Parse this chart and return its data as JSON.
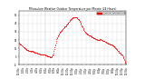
{
  "background_color": "#ffffff",
  "plot_bg_color": "#ffffff",
  "dot_color": "#ff0000",
  "legend_color": "#ff0000",
  "grid_color": "#bbbbbb",
  "text_color": "#000000",
  "xlim": [
    0,
    1440
  ],
  "ylim": [
    -5,
    60
  ],
  "yticks": [
    -5,
    5,
    15,
    25,
    35,
    45,
    55
  ],
  "ytick_labels": [
    "-5",
    "5",
    "15",
    "25",
    "35",
    "45",
    "55"
  ],
  "xtick_positions": [
    0,
    60,
    120,
    180,
    240,
    300,
    360,
    420,
    480,
    540,
    600,
    660,
    720,
    780,
    840,
    900,
    960,
    1020,
    1080,
    1140,
    1200,
    1260,
    1320,
    1380,
    1440
  ],
  "xtick_labels": [
    "12:00a",
    "1:00a",
    "2:00a",
    "3:00a",
    "4:00a",
    "5:00a",
    "6:00a",
    "7:00a",
    "8:00a",
    "9:00a",
    "10:00a",
    "11:00a",
    "12:00p",
    "1:00p",
    "2:00p",
    "3:00p",
    "4:00p",
    "5:00p",
    "6:00p",
    "7:00p",
    "8:00p",
    "9:00p",
    "10:00p",
    "11:00p",
    "12:00a"
  ],
  "temperature_data": [
    [
      0,
      22
    ],
    [
      5,
      21
    ],
    [
      10,
      21
    ],
    [
      15,
      20
    ],
    [
      20,
      20
    ],
    [
      25,
      19
    ],
    [
      30,
      19
    ],
    [
      35,
      18
    ],
    [
      40,
      18
    ],
    [
      45,
      17
    ],
    [
      50,
      17
    ],
    [
      55,
      17
    ],
    [
      60,
      16
    ],
    [
      65,
      16
    ],
    [
      70,
      16
    ],
    [
      75,
      15
    ],
    [
      80,
      15
    ],
    [
      85,
      15
    ],
    [
      90,
      14
    ],
    [
      95,
      14
    ],
    [
      100,
      14
    ],
    [
      105,
      13
    ],
    [
      110,
      13
    ],
    [
      115,
      13
    ],
    [
      120,
      13
    ],
    [
      125,
      13
    ],
    [
      130,
      12
    ],
    [
      135,
      12
    ],
    [
      140,
      12
    ],
    [
      145,
      12
    ],
    [
      150,
      12
    ],
    [
      155,
      11
    ],
    [
      160,
      12
    ],
    [
      165,
      12
    ],
    [
      170,
      12
    ],
    [
      175,
      12
    ],
    [
      180,
      12
    ],
    [
      185,
      12
    ],
    [
      190,
      11
    ],
    [
      195,
      11
    ],
    [
      200,
      11
    ],
    [
      205,
      11
    ],
    [
      210,
      10
    ],
    [
      215,
      10
    ],
    [
      220,
      10
    ],
    [
      225,
      10
    ],
    [
      230,
      10
    ],
    [
      235,
      10
    ],
    [
      240,
      10
    ],
    [
      245,
      10
    ],
    [
      250,
      9
    ],
    [
      255,
      9
    ],
    [
      260,
      9
    ],
    [
      265,
      9
    ],
    [
      270,
      9
    ],
    [
      275,
      9
    ],
    [
      280,
      9
    ],
    [
      285,
      8
    ],
    [
      290,
      8
    ],
    [
      295,
      8
    ],
    [
      300,
      8
    ],
    [
      305,
      8
    ],
    [
      310,
      8
    ],
    [
      315,
      7
    ],
    [
      320,
      7
    ],
    [
      325,
      7
    ],
    [
      330,
      7
    ],
    [
      335,
      7
    ],
    [
      340,
      7
    ],
    [
      345,
      7
    ],
    [
      350,
      7
    ],
    [
      355,
      6
    ],
    [
      360,
      6
    ],
    [
      365,
      6
    ],
    [
      370,
      6
    ],
    [
      375,
      6
    ],
    [
      380,
      5
    ],
    [
      385,
      5
    ],
    [
      390,
      5
    ],
    [
      395,
      5
    ],
    [
      400,
      5
    ],
    [
      405,
      5
    ],
    [
      410,
      5
    ],
    [
      415,
      4
    ],
    [
      420,
      4
    ],
    [
      425,
      4
    ],
    [
      430,
      4
    ],
    [
      435,
      4
    ],
    [
      440,
      5
    ],
    [
      445,
      5
    ],
    [
      450,
      6
    ],
    [
      455,
      7
    ],
    [
      460,
      8
    ],
    [
      465,
      10
    ],
    [
      470,
      12
    ],
    [
      475,
      14
    ],
    [
      480,
      16
    ],
    [
      485,
      18
    ],
    [
      490,
      20
    ],
    [
      495,
      22
    ],
    [
      500,
      24
    ],
    [
      505,
      26
    ],
    [
      510,
      27
    ],
    [
      515,
      28
    ],
    [
      520,
      29
    ],
    [
      525,
      30
    ],
    [
      530,
      31
    ],
    [
      535,
      32
    ],
    [
      540,
      33
    ],
    [
      545,
      34
    ],
    [
      550,
      35
    ],
    [
      555,
      35
    ],
    [
      560,
      35
    ],
    [
      565,
      36
    ],
    [
      570,
      36
    ],
    [
      575,
      37
    ],
    [
      580,
      37
    ],
    [
      585,
      38
    ],
    [
      590,
      38
    ],
    [
      595,
      39
    ],
    [
      600,
      39
    ],
    [
      605,
      40
    ],
    [
      610,
      40
    ],
    [
      615,
      41
    ],
    [
      620,
      41
    ],
    [
      625,
      42
    ],
    [
      630,
      42
    ],
    [
      635,
      43
    ],
    [
      640,
      44
    ],
    [
      645,
      44
    ],
    [
      650,
      45
    ],
    [
      655,
      45
    ],
    [
      660,
      46
    ],
    [
      665,
      46
    ],
    [
      670,
      47
    ],
    [
      675,
      47
    ],
    [
      680,
      48
    ],
    [
      685,
      49
    ],
    [
      690,
      49
    ],
    [
      695,
      50
    ],
    [
      700,
      50
    ],
    [
      705,
      50
    ],
    [
      710,
      51
    ],
    [
      715,
      51
    ],
    [
      720,
      51
    ],
    [
      725,
      52
    ],
    [
      730,
      52
    ],
    [
      735,
      52
    ],
    [
      740,
      52
    ],
    [
      745,
      53
    ],
    [
      750,
      53
    ],
    [
      755,
      53
    ],
    [
      760,
      53
    ],
    [
      765,
      52
    ],
    [
      770,
      52
    ],
    [
      775,
      52
    ],
    [
      780,
      51
    ],
    [
      785,
      51
    ],
    [
      790,
      50
    ],
    [
      795,
      50
    ],
    [
      800,
      50
    ],
    [
      805,
      49
    ],
    [
      810,
      49
    ],
    [
      815,
      48
    ],
    [
      820,
      47
    ],
    [
      825,
      46
    ],
    [
      830,
      45
    ],
    [
      835,
      44
    ],
    [
      840,
      43
    ],
    [
      845,
      42
    ],
    [
      850,
      41
    ],
    [
      855,
      40
    ],
    [
      860,
      39
    ],
    [
      865,
      38
    ],
    [
      870,
      37
    ],
    [
      875,
      36
    ],
    [
      880,
      36
    ],
    [
      885,
      35
    ],
    [
      890,
      35
    ],
    [
      895,
      34
    ],
    [
      900,
      34
    ],
    [
      905,
      33
    ],
    [
      910,
      33
    ],
    [
      915,
      33
    ],
    [
      920,
      32
    ],
    [
      925,
      32
    ],
    [
      930,
      32
    ],
    [
      935,
      31
    ],
    [
      940,
      31
    ],
    [
      945,
      30
    ],
    [
      950,
      30
    ],
    [
      955,
      30
    ],
    [
      960,
      30
    ],
    [
      965,
      29
    ],
    [
      970,
      29
    ],
    [
      975,
      29
    ],
    [
      980,
      28
    ],
    [
      985,
      28
    ],
    [
      990,
      28
    ],
    [
      995,
      28
    ],
    [
      1000,
      27
    ],
    [
      1005,
      27
    ],
    [
      1010,
      27
    ],
    [
      1015,
      27
    ],
    [
      1020,
      27
    ],
    [
      1025,
      26
    ],
    [
      1030,
      26
    ],
    [
      1035,
      26
    ],
    [
      1040,
      26
    ],
    [
      1045,
      26
    ],
    [
      1050,
      25
    ],
    [
      1055,
      25
    ],
    [
      1060,
      25
    ],
    [
      1065,
      25
    ],
    [
      1070,
      25
    ],
    [
      1075,
      25
    ],
    [
      1080,
      25
    ],
    [
      1085,
      25
    ],
    [
      1090,
      26
    ],
    [
      1095,
      26
    ],
    [
      1100,
      26
    ],
    [
      1105,
      25
    ],
    [
      1110,
      25
    ],
    [
      1115,
      25
    ],
    [
      1120,
      25
    ],
    [
      1125,
      24
    ],
    [
      1130,
      24
    ],
    [
      1135,
      24
    ],
    [
      1140,
      24
    ],
    [
      1145,
      24
    ],
    [
      1150,
      24
    ],
    [
      1155,
      23
    ],
    [
      1160,
      23
    ],
    [
      1165,
      23
    ],
    [
      1170,
      23
    ],
    [
      1175,
      22
    ],
    [
      1180,
      22
    ],
    [
      1185,
      22
    ],
    [
      1190,
      22
    ],
    [
      1195,
      21
    ],
    [
      1200,
      21
    ],
    [
      1205,
      21
    ],
    [
      1210,
      21
    ],
    [
      1215,
      21
    ],
    [
      1220,
      20
    ],
    [
      1225,
      20
    ],
    [
      1230,
      20
    ],
    [
      1235,
      20
    ],
    [
      1240,
      19
    ],
    [
      1245,
      19
    ],
    [
      1250,
      19
    ],
    [
      1255,
      18
    ],
    [
      1260,
      18
    ],
    [
      1265,
      18
    ],
    [
      1270,
      17
    ],
    [
      1275,
      17
    ],
    [
      1280,
      17
    ],
    [
      1285,
      16
    ],
    [
      1290,
      16
    ],
    [
      1295,
      15
    ],
    [
      1300,
      15
    ],
    [
      1305,
      14
    ],
    [
      1310,
      14
    ],
    [
      1315,
      13
    ],
    [
      1320,
      13
    ],
    [
      1325,
      12
    ],
    [
      1330,
      12
    ],
    [
      1335,
      12
    ],
    [
      1340,
      11
    ],
    [
      1345,
      10
    ],
    [
      1350,
      10
    ],
    [
      1355,
      10
    ],
    [
      1360,
      10
    ],
    [
      1365,
      9
    ],
    [
      1370,
      8
    ],
    [
      1375,
      8
    ],
    [
      1380,
      7
    ],
    [
      1385,
      7
    ],
    [
      1390,
      6
    ],
    [
      1395,
      5
    ],
    [
      1400,
      4
    ],
    [
      1405,
      3
    ],
    [
      1410,
      2
    ],
    [
      1415,
      1
    ],
    [
      1420,
      0
    ],
    [
      1425,
      -1
    ],
    [
      1430,
      -2
    ],
    [
      1435,
      -3
    ],
    [
      1440,
      -4
    ]
  ],
  "dot_size": 0.3,
  "legend_label": "Outdoor Temperature",
  "vline_x": 360,
  "vline_color": "#999999",
  "title_text": "Milwaukee Weather Outdoor Temperature per Minute (24 Hours)"
}
